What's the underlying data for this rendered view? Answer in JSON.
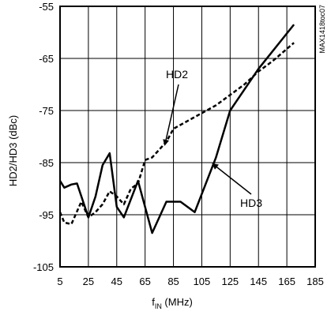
{
  "chart_data": {
    "type": "line",
    "title": "",
    "xlabel": "fIN (MHz)",
    "xlabel_main": "f",
    "xlabel_sub": "IN",
    "xlabel_rest": " (MHz)",
    "ylabel": "HD2/HD3 (dBc)",
    "xlim": [
      5,
      185
    ],
    "ylim": [
      -105,
      -55
    ],
    "xticks": [
      5,
      25,
      45,
      65,
      85,
      105,
      125,
      145,
      165,
      185
    ],
    "yticks": [
      -105,
      -95,
      -85,
      -75,
      -65,
      -55
    ],
    "xtick_labels": [
      "5",
      "25",
      "45",
      "65",
      "85",
      "105",
      "125",
      "145",
      "165",
      "185"
    ],
    "ytick_labels": [
      "-105",
      "-95",
      "-85",
      "-75",
      "-65",
      "-55"
    ],
    "grid": true,
    "series": [
      {
        "name": "HD2",
        "style": "dashed",
        "x": [
          5,
          8,
          13,
          20,
          25,
          30,
          35,
          40,
          45,
          50,
          55,
          60,
          65,
          70,
          75,
          80,
          85,
          95,
          105,
          115,
          125,
          135,
          145,
          155,
          170
        ],
        "y": [
          -94.5,
          -96.5,
          -96.8,
          -92.5,
          -95.5,
          -94.5,
          -93,
          -90.5,
          -91.5,
          -93,
          -90,
          -89,
          -84.5,
          -84,
          -82.5,
          -81,
          -78.5,
          -77,
          -75.5,
          -74,
          -72,
          -70,
          -67.5,
          -65.5,
          -62
        ]
      },
      {
        "name": "HD3",
        "style": "solid",
        "x": [
          5,
          8,
          13,
          17,
          25,
          30,
          35,
          40,
          45,
          50,
          60,
          70,
          80,
          90,
          100,
          115,
          125,
          145,
          170
        ],
        "y": [
          -88.5,
          -89.8,
          -89.2,
          -89.0,
          -95.5,
          -91.5,
          -85.5,
          -83.2,
          -93.5,
          -95.5,
          -88.5,
          -98.5,
          -92.5,
          -92.5,
          -94.5,
          -84,
          -75,
          -67,
          -58.5
        ]
      }
    ],
    "annotations": [
      {
        "text": "HD2",
        "series": "HD2"
      },
      {
        "text": "HD3",
        "series": "HD3"
      }
    ],
    "side_label": "MAX1418toc07"
  }
}
